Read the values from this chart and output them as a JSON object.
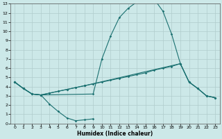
{
  "xlabel": "Humidex (Indice chaleur)",
  "background_color": "#cce8e8",
  "grid_color": "#b0cccc",
  "line_color": "#1a7070",
  "xlim": [
    -0.5,
    23.5
  ],
  "ylim": [
    0,
    13
  ],
  "xticks": [
    0,
    1,
    2,
    3,
    4,
    5,
    6,
    7,
    8,
    9,
    10,
    11,
    12,
    13,
    14,
    15,
    16,
    17,
    18,
    19,
    20,
    21,
    22,
    23
  ],
  "yticks": [
    0,
    1,
    2,
    3,
    4,
    5,
    6,
    7,
    8,
    9,
    10,
    11,
    12,
    13
  ],
  "curve1_x": [
    0,
    1,
    2,
    3,
    4,
    5,
    6,
    7,
    8,
    9
  ],
  "curve1_y": [
    4.5,
    3.8,
    3.2,
    3.1,
    2.1,
    1.3,
    0.6,
    0.3,
    0.4,
    0.5
  ],
  "curve2_x": [
    0,
    1,
    2,
    3,
    9,
    10,
    11,
    12,
    13,
    14,
    15,
    16,
    17,
    18,
    19,
    20,
    21,
    22,
    23
  ],
  "curve2_y": [
    4.5,
    3.8,
    3.2,
    3.1,
    3.2,
    7.0,
    9.5,
    11.5,
    12.5,
    13.2,
    13.3,
    13.5,
    12.2,
    9.7,
    6.5,
    4.5,
    3.8,
    3.0,
    2.8
  ],
  "curve3_x": [
    0,
    1,
    2,
    3,
    4,
    5,
    6,
    7,
    8,
    9,
    10,
    11,
    12,
    13,
    14,
    15,
    16,
    17,
    18,
    19,
    20,
    21,
    22,
    23
  ],
  "curve3_y": [
    4.5,
    3.8,
    3.2,
    3.1,
    3.3,
    3.5,
    3.7,
    3.9,
    4.1,
    4.3,
    4.5,
    4.7,
    4.9,
    5.1,
    5.3,
    5.5,
    5.8,
    6.0,
    6.2,
    6.5,
    4.5,
    3.8,
    3.0,
    2.8
  ],
  "curve4_x": [
    0,
    1,
    2,
    3,
    4,
    5,
    6,
    7,
    8,
    19,
    20,
    21,
    22,
    23
  ],
  "curve4_y": [
    4.5,
    3.8,
    3.2,
    3.1,
    3.3,
    3.5,
    3.7,
    3.9,
    4.1,
    6.5,
    4.5,
    3.8,
    3.0,
    2.8
  ]
}
